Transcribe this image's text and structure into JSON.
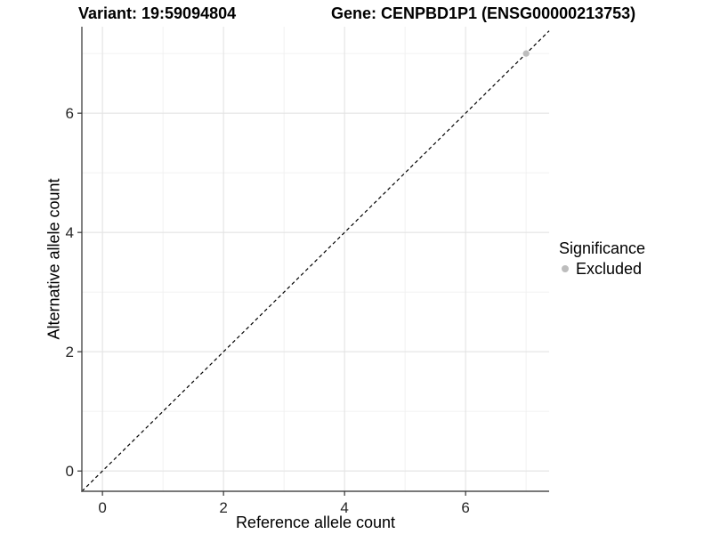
{
  "chart_data": {
    "type": "scatter",
    "title_left": "Variant: 19:59094804",
    "title_right": "Gene: CENPBD1P1 (ENSG00000213753)",
    "xlabel": "Reference allele count",
    "ylabel": "Alternative allele count",
    "xlim": [
      -0.34,
      7.38
    ],
    "ylim": [
      -0.34,
      7.45
    ],
    "x_ticks": [
      0,
      2,
      4,
      6
    ],
    "y_ticks": [
      0,
      2,
      4,
      6
    ],
    "x_minor_gridlines": [
      1,
      3,
      5,
      7
    ],
    "y_minor_gridlines": [
      1,
      3,
      5,
      7
    ],
    "grid": true,
    "points": [
      {
        "x": 7,
        "y": 7,
        "series": "Excluded"
      }
    ],
    "identity_line": {
      "slope": 1,
      "intercept": 0,
      "style": "dashed"
    },
    "legend": {
      "title": "Significance",
      "position": "right",
      "entries": [
        {
          "label": "Excluded",
          "color": "#bdbdbd"
        }
      ]
    }
  },
  "colors": {
    "background": "#ffffff",
    "point": "#bdbdbd",
    "axis_line": "#4d4d4d",
    "tick_mark": "#333333",
    "tick_label": "#262626",
    "grid_major": "#e3e3e3",
    "grid_minor": "#f0f0f0",
    "identity_line": "#000000",
    "text": "#000000"
  }
}
